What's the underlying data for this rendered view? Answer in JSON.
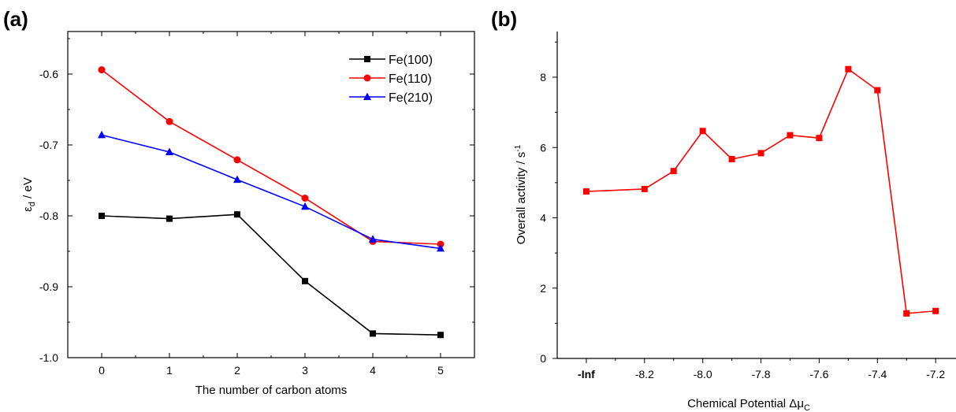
{
  "chart_data": [
    {
      "panel_label": "(a)",
      "type": "line",
      "xlabel": "The number of carbon atoms",
      "ylabel_main": "ε",
      "ylabel_sub": "d",
      "ylabel_rest": " / eV",
      "x": [
        0,
        1,
        2,
        3,
        4,
        5
      ],
      "xticks": [
        "0",
        "1",
        "2",
        "3",
        "4",
        "5"
      ],
      "xlim": [
        -0.5,
        5.5
      ],
      "ylim": [
        -1.0,
        -0.54
      ],
      "yticks": [
        -1.0,
        -0.9,
        -0.8,
        -0.7,
        -0.6
      ],
      "ytick_labels": [
        "-1.0",
        "-0.9",
        "-0.8",
        "-0.7",
        "-0.6"
      ],
      "legend_position": "top-right",
      "series": [
        {
          "name": "Fe(100)",
          "color": "#000000",
          "marker": "square",
          "values": [
            -0.8,
            -0.804,
            -0.798,
            -0.892,
            -0.966,
            -0.968
          ]
        },
        {
          "name": "Fe(110)",
          "color": "#ff0000",
          "marker": "circle",
          "values": [
            -0.594,
            -0.667,
            -0.721,
            -0.775,
            -0.836,
            -0.84
          ]
        },
        {
          "name": "Fe(210)",
          "color": "#0000ff",
          "marker": "triangle",
          "values": [
            -0.686,
            -0.71,
            -0.749,
            -0.787,
            -0.833,
            -0.846
          ]
        }
      ]
    },
    {
      "panel_label": "(b)",
      "type": "line",
      "xlabel_main": "Chemical Potential Δμ",
      "xlabel_sub": "C",
      "ylabel_main": "Overall activity / s",
      "ylabel_sup": "-1",
      "xticks": [
        "-Inf",
        "-8.2",
        "-8.0",
        "-7.8",
        "-7.6",
        "-7.4",
        "-7.2"
      ],
      "xtick_positions": [
        -8.4,
        -8.2,
        -8.0,
        -7.8,
        -7.6,
        -7.4,
        -7.2
      ],
      "xlim": [
        -8.5,
        -7.13
      ],
      "ylim": [
        0,
        9.3
      ],
      "yticks": [
        0,
        2,
        4,
        6,
        8
      ],
      "ytick_labels": [
        "0",
        "2",
        "4",
        "6",
        "8"
      ],
      "series": [
        {
          "color": "#ff0000",
          "marker": "square",
          "x": [
            -8.4,
            -8.2,
            -8.1,
            -8.0,
            -7.9,
            -7.8,
            -7.7,
            -7.6,
            -7.5,
            -7.4,
            -7.3,
            -7.2
          ],
          "values": [
            4.75,
            4.82,
            5.33,
            6.47,
            5.67,
            5.84,
            6.35,
            6.27,
            8.23,
            7.63,
            1.28,
            1.35
          ]
        }
      ]
    }
  ]
}
